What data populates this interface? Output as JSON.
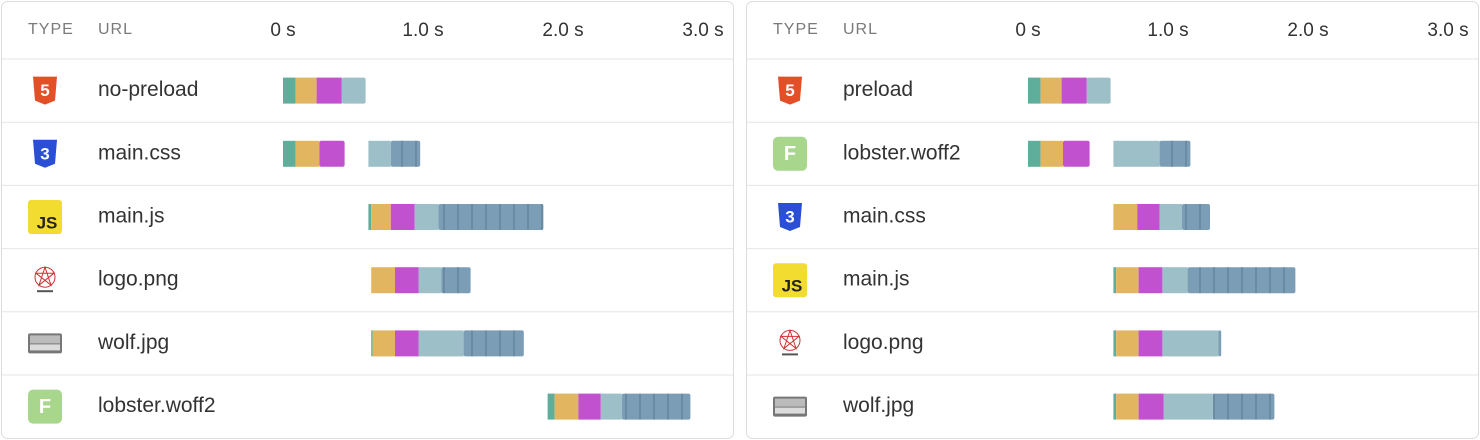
{
  "chart_data": [
    {
      "type": "waterfall",
      "type_header": "TYPE",
      "url_header": "URL",
      "xlim": [
        0,
        3.0
      ],
      "xticks": [
        {
          "value": 0,
          "label": "0 s"
        },
        {
          "value": 1.0,
          "label": "1.0 s"
        },
        {
          "value": 2.0,
          "label": "2.0 s"
        },
        {
          "value": 3.0,
          "label": "3.0 s"
        }
      ],
      "rows": [
        {
          "name": "no-preload",
          "icon": {
            "kind": "html",
            "label": "5"
          },
          "bars": [
            {
              "edges": [
                0,
                0.09,
                0.24,
                0.42,
                0.59
              ],
              "colors": [
                "#5fae9c",
                "#e2b661",
                "#c251cf",
                "#9dbfc8"
              ]
            }
          ]
        },
        {
          "name": "main.css",
          "icon": {
            "kind": "css",
            "label": "3"
          },
          "bars": [
            {
              "edges": [
                0,
                0.09,
                0.26,
                0.44
              ],
              "colors": [
                "#5fae9c",
                "#e2b661",
                "#c251cf"
              ]
            },
            {
              "edges": [
                0.61,
                0.77,
                0.98
              ],
              "colors": [
                "#9dbfc8",
                "#7b9db5"
              ]
            }
          ]
        },
        {
          "name": "main.js",
          "icon": {
            "kind": "js",
            "label": "JS"
          },
          "bars": [
            {
              "edges": [
                0.61,
                0.63,
                0.77,
                0.94,
                1.11,
                1.86
              ],
              "colors": [
                "#5fae9c",
                "#e2b661",
                "#c251cf",
                "#9dbfc8",
                "#7b9db5"
              ]
            }
          ]
        },
        {
          "name": "logo.png",
          "icon": {
            "kind": "logo"
          },
          "bars": [
            {
              "edges": [
                0.63,
                0.8,
                0.97,
                1.13,
                1.34
              ],
              "colors": [
                "#e2b661",
                "#c251cf",
                "#9dbfc8",
                "#7b9db5"
              ]
            }
          ]
        },
        {
          "name": "wolf.jpg",
          "icon": {
            "kind": "photo"
          },
          "bars": [
            {
              "edges": [
                0.63,
                0.64,
                0.8,
                0.97,
                1.29,
                1.72
              ],
              "colors": [
                "#5fae9c",
                "#e2b661",
                "#c251cf",
                "#9dbfc8",
                "#7b9db5"
              ]
            }
          ]
        },
        {
          "name": "lobster.woff2",
          "icon": {
            "kind": "font",
            "label": "F"
          },
          "bars": [
            {
              "edges": [
                1.89,
                1.94,
                2.11,
                2.27,
                2.42,
                2.91
              ],
              "colors": [
                "#5fae9c",
                "#e2b661",
                "#c251cf",
                "#9dbfc8",
                "#7b9db5"
              ]
            }
          ]
        }
      ]
    },
    {
      "type": "waterfall",
      "type_header": "TYPE",
      "url_header": "URL",
      "xlim": [
        0,
        3.0
      ],
      "xticks": [
        {
          "value": 0,
          "label": "0 s"
        },
        {
          "value": 1.0,
          "label": "1.0 s"
        },
        {
          "value": 2.0,
          "label": "2.0 s"
        },
        {
          "value": 3.0,
          "label": "3.0 s"
        }
      ],
      "rows": [
        {
          "name": "preload",
          "icon": {
            "kind": "html",
            "label": "5"
          },
          "bars": [
            {
              "edges": [
                0,
                0.09,
                0.24,
                0.42,
                0.59
              ],
              "colors": [
                "#5fae9c",
                "#e2b661",
                "#c251cf",
                "#9dbfc8"
              ]
            }
          ]
        },
        {
          "name": "lobster.woff2",
          "icon": {
            "kind": "font",
            "label": "F"
          },
          "bars": [
            {
              "edges": [
                0,
                0.09,
                0.25,
                0.44
              ],
              "colors": [
                "#5fae9c",
                "#e2b661",
                "#c251cf"
              ]
            },
            {
              "edges": [
                0.61,
                0.94,
                1.16
              ],
              "colors": [
                "#9dbfc8",
                "#7b9db5"
              ]
            }
          ]
        },
        {
          "name": "main.css",
          "icon": {
            "kind": "css",
            "label": "3"
          },
          "bars": [
            {
              "edges": [
                0.61,
                0.78,
                0.94,
                1.1,
                1.3
              ],
              "colors": [
                "#e2b661",
                "#c251cf",
                "#9dbfc8",
                "#7b9db5"
              ]
            }
          ]
        },
        {
          "name": "main.js",
          "icon": {
            "kind": "js",
            "label": "JS"
          },
          "bars": [
            {
              "edges": [
                0.61,
                0.63,
                0.79,
                0.96,
                1.14,
                1.91
              ],
              "colors": [
                "#5fae9c",
                "#e2b661",
                "#c251cf",
                "#9dbfc8",
                "#7b9db5"
              ]
            }
          ]
        },
        {
          "name": "logo.png",
          "icon": {
            "kind": "logo"
          },
          "bars": [
            {
              "edges": [
                0.61,
                0.63,
                0.79,
                0.96,
                1.36,
                1.38
              ],
              "colors": [
                "#5fae9c",
                "#e2b661",
                "#c251cf",
                "#9dbfc8",
                "#7b9db5"
              ]
            }
          ]
        },
        {
          "name": "wolf.jpg",
          "icon": {
            "kind": "photo"
          },
          "bars": [
            {
              "edges": [
                0.61,
                0.63,
                0.79,
                0.97,
                1.32,
                1.76
              ],
              "colors": [
                "#5fae9c",
                "#e2b661",
                "#c251cf",
                "#9dbfc8",
                "#7b9db5"
              ]
            }
          ]
        }
      ]
    }
  ]
}
